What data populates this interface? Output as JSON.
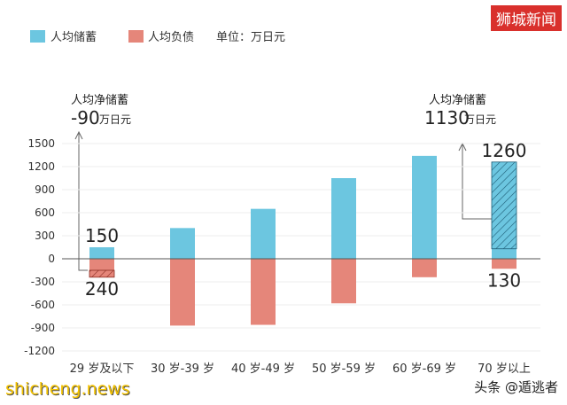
{
  "brand": "狮城新闻",
  "watermark_left": "shicheng.news",
  "watermark_right": "头条 @遁逃者",
  "legend": {
    "savings": "人均储蓄",
    "debt": "人均负债",
    "unit": "单位：万日元"
  },
  "colors": {
    "savings": "#6cc6e0",
    "debt": "#e5867a",
    "zero_line": "#555555",
    "arrow": "#666666"
  },
  "notes": {
    "left": {
      "title": "人均净储蓄",
      "value": "-90",
      "unit": "万日元"
    },
    "right": {
      "title": "人均净储蓄",
      "value": "1130",
      "unit": "万日元"
    }
  },
  "chart_data": {
    "type": "bar",
    "categories": [
      "29 岁及以下",
      "30 岁-39 岁",
      "40 岁-49 岁",
      "50 岁-59 岁",
      "60 岁-69 岁",
      "70 岁以上"
    ],
    "series": [
      {
        "name": "人均储蓄",
        "values": [
          150,
          400,
          650,
          1050,
          1340,
          1260
        ]
      },
      {
        "name": "人均负债",
        "values": [
          -240,
          -870,
          -860,
          -580,
          -240,
          -130
        ]
      }
    ],
    "y_ticks": [
      "1500",
      "1200",
      "900",
      "600",
      "300",
      "0",
      "-300",
      "-600",
      "-900",
      "-1200"
    ],
    "ylim": [
      -1200,
      1500
    ],
    "data_labels": [
      {
        "category": "29 岁及以下",
        "savings": "150",
        "debt": "240"
      },
      {
        "category": "70 岁以上",
        "savings": "1260",
        "debt": "130"
      }
    ],
    "grid": true,
    "legend_position": "top-left"
  }
}
